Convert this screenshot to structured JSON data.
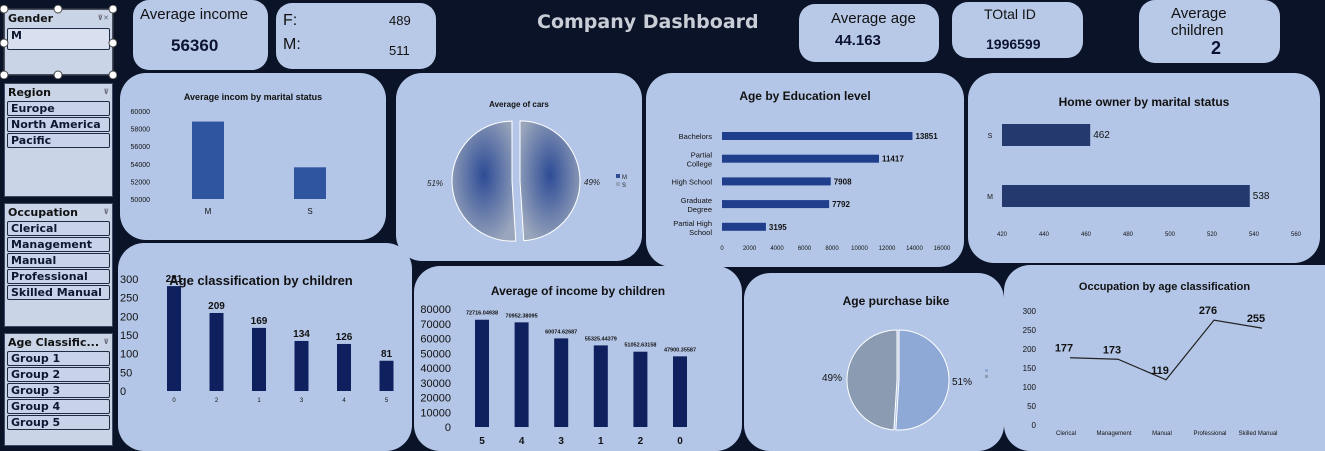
{
  "dashboard_title": "Company Dashboard",
  "slicers": {
    "gender": {
      "title": "Gender",
      "selected": "M"
    },
    "region": {
      "title": "Region",
      "items": [
        "Europe",
        "North America",
        "Pacific"
      ]
    },
    "occupation": {
      "title": "Occupation",
      "items": [
        "Clerical",
        "Management",
        "Manual",
        "Professional",
        "Skilled Manual"
      ]
    },
    "age_class": {
      "title": "Age Classific...",
      "items": [
        "Group 1",
        "Group 2",
        "Group 3",
        "Group 4",
        "Group 5"
      ]
    }
  },
  "kpis": {
    "avg_income": {
      "label": "Average income",
      "value": "56360"
    },
    "gender_count": {
      "f_label": "F:",
      "f_value": "489",
      "m_label": "M:",
      "m_value": "511"
    },
    "avg_age": {
      "label": "Average age",
      "value": "44.163"
    },
    "total_id": {
      "label": "TOtal ID",
      "value": "1996599"
    },
    "avg_children": {
      "label": "Average children",
      "value": "2"
    }
  },
  "chart_data": [
    {
      "id": "income_marital",
      "type": "bar",
      "title": "Average incom by marital status",
      "categories": [
        "M",
        "S"
      ],
      "values": [
        58800,
        53600
      ],
      "ylim": [
        50000,
        60000
      ],
      "y_ticks": [
        "50000",
        "52000",
        "54000",
        "56000",
        "58000",
        "60000"
      ]
    },
    {
      "id": "cars_pie",
      "type": "pie",
      "title": "Average of cars",
      "categories": [
        "M",
        "S"
      ],
      "values": [
        49,
        51
      ],
      "labels": [
        "49%",
        "51%"
      ],
      "legend": [
        "M",
        "S"
      ]
    },
    {
      "id": "age_education",
      "type": "bar",
      "title": "Age by Education level",
      "categories": [
        "Bachelors",
        "Partial College",
        "High School",
        "Graduate Degree",
        "Partial High School"
      ],
      "values": [
        13851,
        11417,
        7908,
        7792,
        3195
      ],
      "value_labels": [
        "13851",
        "11417",
        "7908",
        "7792",
        "3195"
      ],
      "xlim": [
        0,
        16000
      ],
      "x_ticks": [
        "0",
        "2000",
        "4000",
        "6000",
        "8000",
        "10000",
        "12000",
        "14000",
        "16000"
      ]
    },
    {
      "id": "home_owner",
      "type": "bar",
      "title": "Home owner by marital status",
      "categories": [
        "S",
        "M"
      ],
      "values": [
        462,
        538
      ],
      "value_labels": [
        "462",
        "538"
      ],
      "xlim": [
        420,
        560
      ],
      "x_ticks": [
        "420",
        "440",
        "460",
        "480",
        "500",
        "520",
        "540",
        "560"
      ]
    },
    {
      "id": "age_children",
      "type": "bar",
      "title": "Age classification by children",
      "categories": [
        "0",
        "2",
        "1",
        "3",
        "4",
        "5"
      ],
      "values": [
        281,
        209,
        169,
        134,
        126,
        81
      ],
      "value_labels": [
        "281",
        "209",
        "169",
        "134",
        "126",
        "81"
      ],
      "ylim": [
        0,
        300
      ],
      "y_ticks": [
        "0",
        "50",
        "100",
        "150",
        "200",
        "250",
        "300"
      ]
    },
    {
      "id": "income_children",
      "type": "bar",
      "title": "Average of income by children",
      "categories": [
        "5",
        "4",
        "3",
        "1",
        "2",
        "0"
      ],
      "values": [
        72716.04938,
        70952.38095,
        60074.62687,
        55325.44379,
        51052.63158,
        47900.35587
      ],
      "value_labels": [
        "72716.04938",
        "70952.38095",
        "60074.62687",
        "55325.44379",
        "51052.63158",
        "47900.35587"
      ],
      "ylim": [
        0,
        80000
      ],
      "y_ticks": [
        "0",
        "10000",
        "20000",
        "30000",
        "40000",
        "50000",
        "60000",
        "70000",
        "80000"
      ]
    },
    {
      "id": "bike_pie",
      "type": "pie",
      "title": "Age purchase bike",
      "values": [
        51,
        49
      ],
      "labels": [
        "51%",
        "49%"
      ]
    },
    {
      "id": "occupation_age",
      "type": "line",
      "title": "Occupation by age classification",
      "categories": [
        "Clerical",
        "Management",
        "Manual",
        "Professional",
        "Skilled Manual"
      ],
      "values": [
        177,
        173,
        119,
        276,
        255
      ],
      "value_labels": [
        "177",
        "173",
        "119",
        "276",
        "255"
      ],
      "ylim": [
        0,
        300
      ],
      "y_ticks": [
        "0",
        "50",
        "100",
        "150",
        "200",
        "250",
        "300"
      ]
    }
  ]
}
